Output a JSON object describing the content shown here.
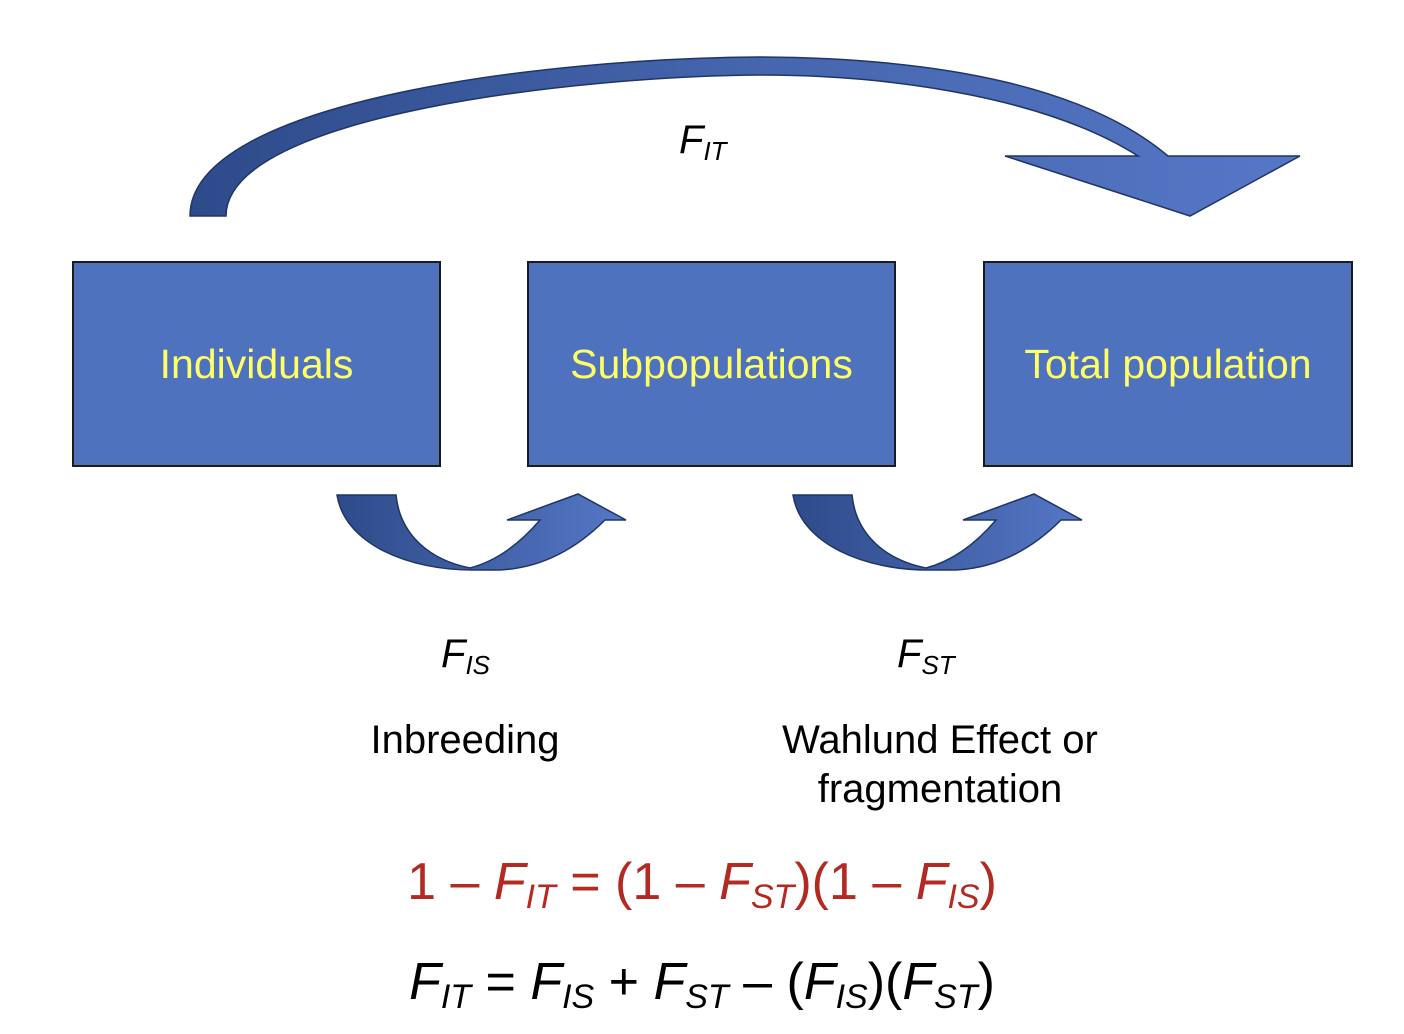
{
  "colors": {
    "box_fill": "#4f72bf",
    "box_text": "#ffff66",
    "arrow_light": "#4f72bf",
    "arrow_dark": "#2e4a8a",
    "equation1": "#b22a22",
    "equation2": "#000000"
  },
  "boxes": {
    "individuals": "Individuals",
    "subpopulations": "Subpopulations",
    "total": "Total population"
  },
  "labels": {
    "fit": {
      "main": "F",
      "sub": "IT"
    },
    "fis": {
      "main": "F",
      "sub": "IS"
    },
    "fst": {
      "main": "F",
      "sub": "ST"
    }
  },
  "descriptions": {
    "inbreeding": "Inbreeding",
    "wahlund_line1": "Wahlund Effect or",
    "wahlund_line2": "fragmentation"
  },
  "equation1": {
    "p1": "1 – ",
    "f1": "F",
    "s1": "IT",
    "p2": " = (1 – ",
    "f2": "F",
    "s2": "ST",
    "p3": ")(1 – ",
    "f3": "F",
    "s3": "IS",
    "p4": ")"
  },
  "equation2": {
    "f1": "F",
    "s1": "IT",
    "p1": " = ",
    "f2": "F",
    "s2": "IS",
    "p2": " + ",
    "f3": "F",
    "s3": "ST",
    "p3": " – (",
    "f4": "F",
    "s4": "IS",
    "p4": ")(",
    "f5": "F",
    "s5": "ST",
    "p5": ")"
  }
}
